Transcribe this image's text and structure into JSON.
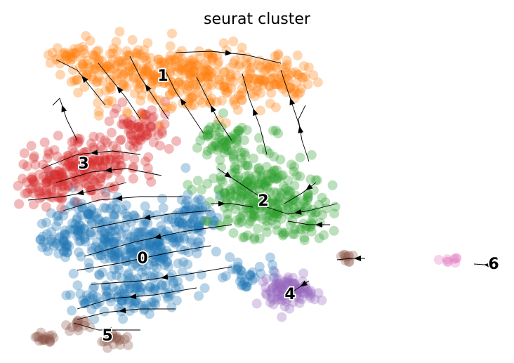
{
  "chart_data": {
    "type": "scatter",
    "title": "seurat cluster",
    "xlabel": "",
    "ylabel": "",
    "grid": false,
    "legend": "on data",
    "overlay": "velocity streamlines with arrowheads",
    "clusters": [
      {
        "label": "0",
        "color": "#1f77b4"
      },
      {
        "label": "1",
        "color": "#ff7f0e"
      },
      {
        "label": "2",
        "color": "#2ca02c"
      },
      {
        "label": "3",
        "color": "#d62728"
      },
      {
        "label": "4",
        "color": "#9467bd"
      },
      {
        "label": "5",
        "color": "#8c564b"
      },
      {
        "label": "6",
        "color": "#e377c2"
      }
    ]
  }
}
